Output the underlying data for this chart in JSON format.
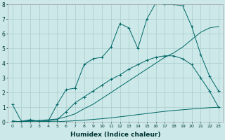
{
  "xlabel": "Humidex (Indice chaleur)",
  "background_color": "#cce8e8",
  "grid_color": "#aacccc",
  "line_color": "#006666",
  "xlim": [
    -0.5,
    23.5
  ],
  "ylim": [
    0,
    8
  ],
  "xticks": [
    0,
    1,
    2,
    3,
    4,
    5,
    6,
    7,
    8,
    9,
    10,
    11,
    12,
    13,
    14,
    15,
    16,
    17,
    18,
    19,
    20,
    21,
    22,
    23
  ],
  "yticks": [
    0,
    1,
    2,
    3,
    4,
    5,
    6,
    7,
    8
  ],
  "series": [
    {
      "x": [
        0,
        1,
        2,
        3,
        4,
        5,
        6,
        7,
        8,
        9,
        10,
        11,
        12,
        13,
        14,
        15,
        16,
        17,
        18,
        19,
        20,
        21,
        22,
        23
      ],
      "y": [
        1.2,
        0.05,
        0.15,
        0.05,
        0.05,
        1.2,
        2.2,
        2.3,
        3.9,
        4.3,
        4.4,
        5.1,
        6.7,
        6.4,
        5.0,
        7.0,
        8.1,
        8.0,
        8.0,
        7.9,
        6.5,
        4.6,
        3.1,
        2.1
      ],
      "marker": true
    },
    {
      "x": [
        0,
        1,
        2,
        3,
        4,
        5,
        6,
        7,
        8,
        9,
        10,
        11,
        12,
        13,
        14,
        15,
        16,
        17,
        18,
        19,
        20,
        21,
        22,
        23
      ],
      "y": [
        0.05,
        0.02,
        0.02,
        0.02,
        0.02,
        0.02,
        0.05,
        0.08,
        0.12,
        0.17,
        0.22,
        0.28,
        0.35,
        0.42,
        0.5,
        0.57,
        0.65,
        0.72,
        0.78,
        0.83,
        0.88,
        0.93,
        0.97,
        1.0
      ],
      "marker": false
    },
    {
      "x": [
        0,
        1,
        2,
        3,
        4,
        5,
        6,
        7,
        8,
        9,
        10,
        11,
        12,
        13,
        14,
        15,
        16,
        17,
        18,
        19,
        20,
        21,
        22,
        23
      ],
      "y": [
        0.05,
        0.02,
        0.1,
        0.05,
        0.08,
        0.15,
        0.7,
        1.3,
        1.7,
        2.1,
        2.5,
        2.9,
        3.2,
        3.6,
        3.9,
        4.2,
        4.4,
        4.5,
        4.5,
        4.3,
        3.9,
        3.0,
        2.1,
        1.0
      ],
      "marker": true
    },
    {
      "x": [
        0,
        1,
        2,
        3,
        4,
        5,
        6,
        7,
        8,
        9,
        10,
        11,
        12,
        13,
        14,
        15,
        16,
        17,
        18,
        19,
        20,
        21,
        22,
        23
      ],
      "y": [
        0.05,
        0.02,
        0.05,
        0.1,
        0.15,
        0.2,
        0.35,
        0.55,
        0.9,
        1.2,
        1.6,
        2.0,
        2.4,
        2.8,
        3.2,
        3.6,
        4.0,
        4.4,
        4.7,
        5.1,
        5.6,
        6.1,
        6.4,
        6.5
      ],
      "marker": false
    }
  ]
}
